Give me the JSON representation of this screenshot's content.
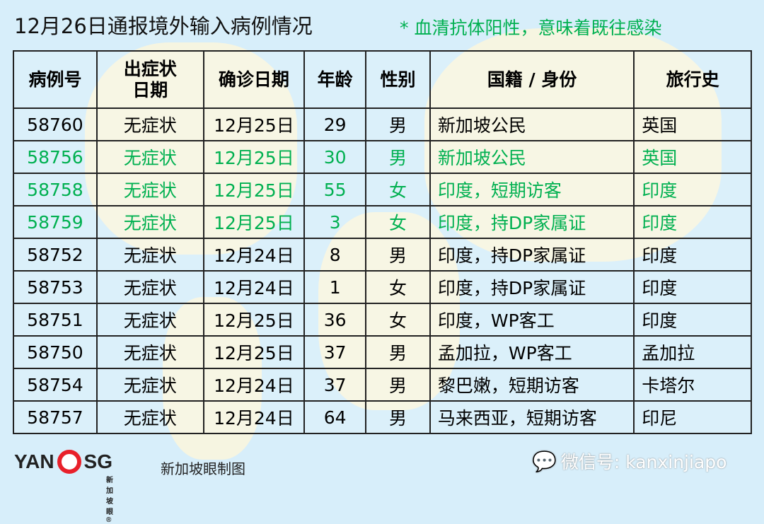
{
  "title": "12月26日通报境外输入病例情况",
  "note": "* 血清抗体阳性，意味着既往感染",
  "table": {
    "headers": [
      "病例号",
      "出症状\n日期",
      "确诊日期",
      "年龄",
      "性别",
      "国籍 / 身份",
      "旅行史"
    ],
    "rows": [
      {
        "cells": [
          "58760",
          "无症状",
          "12月25日",
          "29",
          "男",
          "新加坡公民",
          "英国"
        ],
        "highlight": false
      },
      {
        "cells": [
          "58756",
          "无症状",
          "12月25日",
          "30",
          "男",
          "新加坡公民",
          "英国"
        ],
        "highlight": true
      },
      {
        "cells": [
          "58758",
          "无症状",
          "12月25日",
          "55",
          "女",
          "印度，短期访客",
          "印度"
        ],
        "highlight": true
      },
      {
        "cells": [
          "58759",
          "无症状",
          "12月25日",
          "3",
          "女",
          "印度，持DP家属证",
          "印度"
        ],
        "highlight": true
      },
      {
        "cells": [
          "58752",
          "无症状",
          "12月24日",
          "8",
          "男",
          "印度，持DP家属证",
          "印度"
        ],
        "highlight": false
      },
      {
        "cells": [
          "58753",
          "无症状",
          "12月24日",
          "1",
          "女",
          "印度，持DP家属证",
          "印度"
        ],
        "highlight": false
      },
      {
        "cells": [
          "58751",
          "无症状",
          "12月25日",
          "36",
          "女",
          "印度，WP客工",
          "印度"
        ],
        "highlight": false
      },
      {
        "cells": [
          "58750",
          "无症状",
          "12月25日",
          "37",
          "男",
          "孟加拉，WP客工",
          "孟加拉"
        ],
        "highlight": false
      },
      {
        "cells": [
          "58754",
          "无症状",
          "12月24日",
          "37",
          "男",
          "黎巴嫩，短期访客",
          "卡塔尔"
        ],
        "highlight": false
      },
      {
        "cells": [
          "58757",
          "无症状",
          "12月24日",
          "64",
          "男",
          "马来西亚，短期访客",
          "印尼"
        ],
        "highlight": false
      }
    ]
  },
  "highlight_color": "#00b050",
  "footer": {
    "logo": "YAN SG 新加坡眼®",
    "credit": "新加坡眼制图",
    "wechat": "微信号: kanxinjiapo",
    "wechat_icon": "wechat-icon"
  }
}
